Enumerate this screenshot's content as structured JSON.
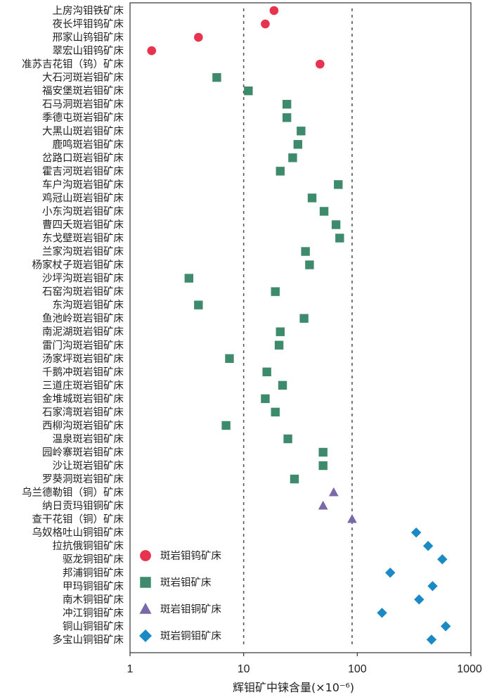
{
  "chart_data": {
    "type": "scatter",
    "x_scale": "log",
    "xlim": [
      1,
      1000
    ],
    "x_ticks": [
      "1",
      "10",
      "100",
      "1000"
    ],
    "xlabel": "辉钼矿中铼含量(×10⁻⁶)",
    "reference_lines_x": [
      10,
      90
    ],
    "legend_position": "bottom-left",
    "colors": {
      "斑岩钼钨矿床": "#e8334f",
      "斑岩钼矿床": "#3e8a6c",
      "斑岩钼铜矿床": "#7b68a8",
      "斑岩铜钼矿床": "#1b89c4"
    },
    "markers": {
      "斑岩钼钨矿床": "circle",
      "斑岩钼矿床": "square",
      "斑岩钼铜矿床": "triangle",
      "斑岩铜钼矿床": "diamond"
    },
    "categories": [
      "上房沟钼铁矿床",
      "夜长坪钼钨矿床",
      "邢家山钨钼矿床",
      "翠宏山钼钨矿床",
      "准苏吉花钼（钨）矿床",
      "大石河斑岩钼矿床",
      "福安堡斑岩钼矿床",
      "石马洞斑岩钼矿床",
      "季德屯斑岩钼矿床",
      "大黑山斑岩钼矿床",
      "鹿鸣斑岩钼矿床",
      "岔路口斑岩钼矿床",
      "霍吉河斑岩钼矿床",
      "车户沟斑岩钼矿床",
      "鸡冠山斑岩钼矿床",
      "小东沟斑岩钼矿床",
      "曹四夭斑岩钼矿床",
      "东戈壁斑岩钼矿床",
      "兰家沟斑岩钼矿床",
      "杨家杖子斑岩钼矿床",
      "沙坪沟斑岩钼矿床",
      "石窑沟斑岩钼矿床",
      "东沟斑岩钼矿床",
      "鱼池岭斑岩钼矿床",
      "南泥湖斑岩钼矿床",
      "雷门沟斑岩钼矿床",
      "汤家坪斑岩钼矿床",
      "千鹅冲斑岩钼矿床",
      "三道庄斑岩钼矿床",
      "金堆城斑岩钼矿床",
      "石家湾斑岩钼矿床",
      "西柳沟斑岩钼矿床",
      "温泉斑岩钼矿床",
      "园岭寨斑岩钼矿床",
      "沙让斑岩钼矿床",
      "罗葵洞斑岩钼矿床",
      "乌兰德勒钼（铜）矿床",
      "纳日贡玛钼铜矿床",
      "查干花钼（铜）矿床",
      "乌奴格吐山铜钼矿床",
      "拉抗俄铜钼矿床",
      "驱龙铜钼矿床",
      "邦浦铜钼矿床",
      "甲玛铜钼矿床",
      "南木铜钼矿床",
      "冲江铜钼矿床",
      "铜山铜钼矿床",
      "多宝山铜钼矿床"
    ],
    "series": [
      {
        "name": "斑岩钼钨矿床",
        "points": [
          {
            "category": "上房沟钼铁矿床",
            "x": 18.5
          },
          {
            "category": "夜长坪钼钨矿床",
            "x": 15.5
          },
          {
            "category": "邢家山钨钼矿床",
            "x": 4.0
          },
          {
            "category": "翠宏山钼钨矿床",
            "x": 1.55
          },
          {
            "category": "准苏吉花钼（钨）矿床",
            "x": 47
          }
        ]
      },
      {
        "name": "斑岩钼矿床",
        "points": [
          {
            "category": "大石河斑岩钼矿床",
            "x": 5.8
          },
          {
            "category": "福安堡斑岩钼矿床",
            "x": 11
          },
          {
            "category": "石马洞斑岩钼矿床",
            "x": 24
          },
          {
            "category": "季德屯斑岩钼矿床",
            "x": 24
          },
          {
            "category": "大黑山斑岩钼矿床",
            "x": 32
          },
          {
            "category": "鹿鸣斑岩钼矿床",
            "x": 30
          },
          {
            "category": "岔路口斑岩钼矿床",
            "x": 27
          },
          {
            "category": "霍吉河斑岩钼矿床",
            "x": 21
          },
          {
            "category": "车户沟斑岩钼矿床",
            "x": 68
          },
          {
            "category": "鸡冠山斑岩钼矿床",
            "x": 40
          },
          {
            "category": "小东沟斑岩钼矿床",
            "x": 51
          },
          {
            "category": "曹四夭斑岩钼矿床",
            "x": 65
          },
          {
            "category": "东戈壁斑岩钼矿床",
            "x": 70
          },
          {
            "category": "兰家沟斑岩钼矿床",
            "x": 35
          },
          {
            "category": "杨家杖子斑岩钼矿床",
            "x": 38
          },
          {
            "category": "沙坪沟斑岩钼矿床",
            "x": 3.3
          },
          {
            "category": "石窑沟斑岩钼矿床",
            "x": 19
          },
          {
            "category": "东沟斑岩钼矿床",
            "x": 4.0
          },
          {
            "category": "鱼池岭斑岩钼矿床",
            "x": 34
          },
          {
            "category": "南泥湖斑岩钼矿床",
            "x": 21
          },
          {
            "category": "雷门沟斑岩钼矿床",
            "x": 20.5
          },
          {
            "category": "汤家坪斑岩钼矿床",
            "x": 7.5
          },
          {
            "category": "千鹅冲斑岩钼矿床",
            "x": 16
          },
          {
            "category": "三道庄斑岩钼矿床",
            "x": 22
          },
          {
            "category": "金堆城斑岩钼矿床",
            "x": 15.5
          },
          {
            "category": "石家湾斑岩钼矿床",
            "x": 19
          },
          {
            "category": "西柳沟斑岩钼矿床",
            "x": 7
          },
          {
            "category": "温泉斑岩钼矿床",
            "x": 24.5
          },
          {
            "category": "园岭寨斑岩钼矿床",
            "x": 50
          },
          {
            "category": "沙让斑岩钼矿床",
            "x": 50
          },
          {
            "category": "罗葵洞斑岩钼矿床",
            "x": 28
          }
        ]
      },
      {
        "name": "斑岩钼铜矿床",
        "points": [
          {
            "category": "乌兰德勒钼（铜）矿床",
            "x": 62
          },
          {
            "category": "纳日贡玛钼铜矿床",
            "x": 50
          },
          {
            "category": "查干花钼（铜）矿床",
            "x": 90
          }
        ]
      },
      {
        "name": "斑岩铜钼矿床",
        "points": [
          {
            "category": "乌奴格吐山铜钼矿床",
            "x": 330
          },
          {
            "category": "拉抗俄铜钼矿床",
            "x": 420
          },
          {
            "category": "驱龙铜钼矿床",
            "x": 560
          },
          {
            "category": "邦浦铜钼矿床",
            "x": 195
          },
          {
            "category": "甲玛铜钼矿床",
            "x": 460
          },
          {
            "category": "南木铜钼矿床",
            "x": 350
          },
          {
            "category": "冲江铜钼矿床",
            "x": 165
          },
          {
            "category": "铜山铜钼矿床",
            "x": 600
          },
          {
            "category": "多宝山铜钼矿床",
            "x": 450
          }
        ]
      }
    ]
  }
}
